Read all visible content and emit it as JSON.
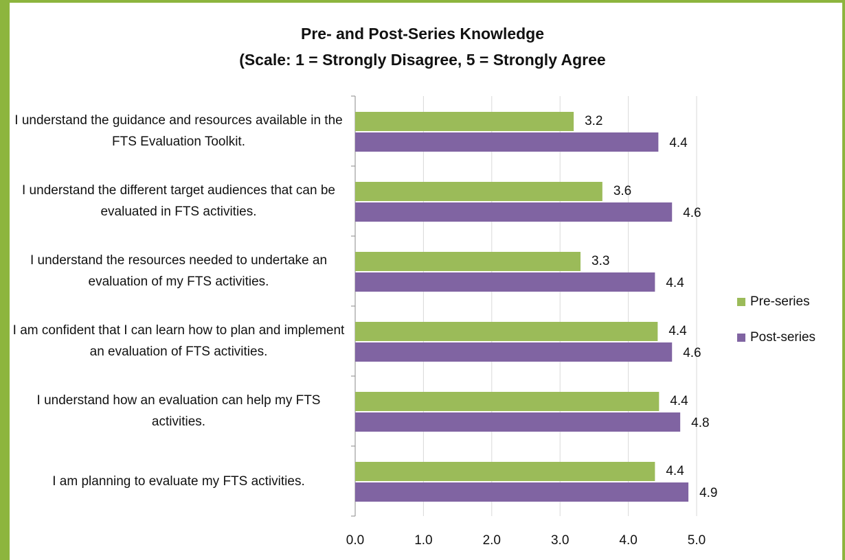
{
  "chart_data": {
    "type": "hbar",
    "title": "Pre- and Post-Series Knowledge",
    "subtitle": "(Scale: 1 = Strongly Disagree, 5 = Strongly Agree",
    "categories": [
      "I understand the guidance and resources available in the FTS Evaluation Toolkit.",
      "I understand the different target audiences that can be evaluated in FTS activities.",
      "I understand the resources needed to undertake an evaluation of my FTS activities.",
      "I am confident that I can learn how to plan and implement an evaluation of FTS activities.",
      "I understand how an evaluation can help my FTS activities.",
      "I am planning to evaluate my FTS activities."
    ],
    "series": [
      {
        "name": "Pre-series",
        "color": "#9bbb59",
        "values": [
          3.2,
          3.62,
          3.3,
          4.43,
          4.45,
          4.39
        ],
        "value_labels": [
          "3.2",
          "3.6",
          "3.3",
          "4.4",
          "4.4",
          "4.4"
        ]
      },
      {
        "name": "Post-series",
        "color": "#8064a2",
        "values": [
          4.44,
          4.64,
          4.39,
          4.64,
          4.76,
          4.88
        ],
        "value_labels": [
          "4.4",
          "4.6",
          "4.4",
          "4.6",
          "4.8",
          "4.9"
        ]
      }
    ],
    "xlim": [
      0,
      5
    ],
    "xticks": [
      {
        "value": 0,
        "label": "0.0"
      },
      {
        "value": 1,
        "label": "1.0"
      },
      {
        "value": 2,
        "label": "2.0"
      },
      {
        "value": 3,
        "label": "3.0"
      },
      {
        "value": 4,
        "label": "4.0"
      },
      {
        "value": 5,
        "label": "5.0"
      }
    ],
    "grid": true,
    "legend": "right"
  }
}
